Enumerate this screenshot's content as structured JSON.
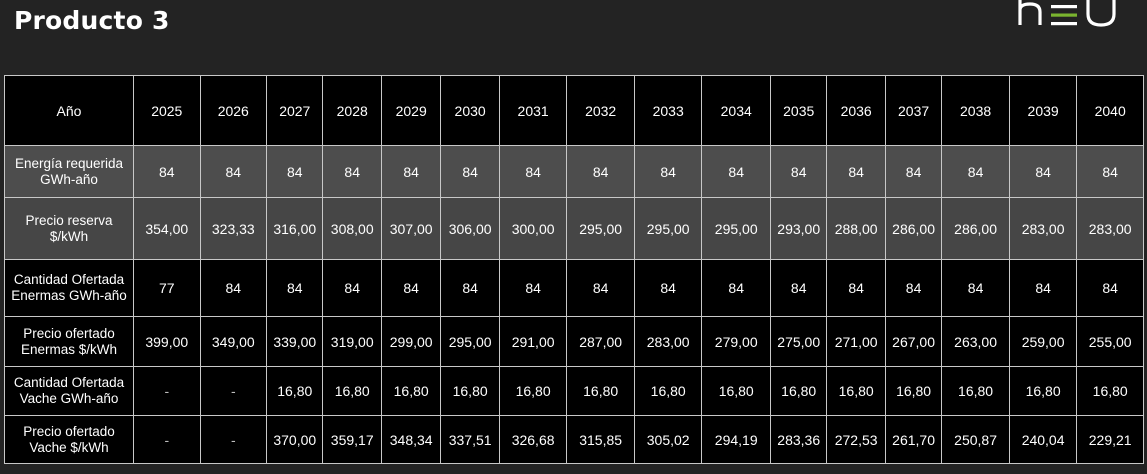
{
  "header": {
    "title": "Producto 3",
    "logo_text": "neu",
    "logo_accent": "#7ab42f"
  },
  "table": {
    "corner_label": "Año",
    "years": [
      "2025",
      "2026",
      "2027",
      "2028",
      "2029",
      "2030",
      "2031",
      "2032",
      "2033",
      "2034",
      "2035",
      "2036",
      "2037",
      "2038",
      "2039",
      "2040"
    ],
    "rows": [
      {
        "label_line1": "Energía requerida",
        "label_line2": "GWh-año",
        "values": [
          "84",
          "84",
          "84",
          "84",
          "84",
          "84",
          "84",
          "84",
          "84",
          "84",
          "84",
          "84",
          "84",
          "84",
          "84",
          "84"
        ]
      },
      {
        "label_line1": "Precio reserva",
        "label_line2": "$/kWh",
        "values": [
          "354,00",
          "323,33",
          "316,00",
          "308,00",
          "307,00",
          "306,00",
          "300,00",
          "295,00",
          "295,00",
          "295,00",
          "293,00",
          "288,00",
          "286,00",
          "286,00",
          "283,00",
          "283,00"
        ]
      },
      {
        "label_line1": "Cantidad Ofertada",
        "label_line2": "Enermas GWh-año",
        "values": [
          "77",
          "84",
          "84",
          "84",
          "84",
          "84",
          "84",
          "84",
          "84",
          "84",
          "84",
          "84",
          "84",
          "84",
          "84",
          "84"
        ]
      },
      {
        "label_line1": "Precio ofertado",
        "label_line2": "Enermas $/kWh",
        "values": [
          "399,00",
          "349,00",
          "339,00",
          "319,00",
          "299,00",
          "295,00",
          "291,00",
          "287,00",
          "283,00",
          "279,00",
          "275,00",
          "271,00",
          "267,00",
          "263,00",
          "259,00",
          "255,00"
        ]
      },
      {
        "label_line1": "Cantidad Ofertada",
        "label_line2": "Vache  GWh-año",
        "values": [
          "-",
          "-",
          "16,80",
          "16,80",
          "16,80",
          "16,80",
          "16,80",
          "16,80",
          "16,80",
          "16,80",
          "16,80",
          "16,80",
          "16,80",
          "16,80",
          "16,80",
          "16,80"
        ]
      },
      {
        "label_line1": "Precio ofertado",
        "label_line2": "Vache $/kWh",
        "values": [
          "-",
          "-",
          "370,00",
          "359,17",
          "348,34",
          "337,51",
          "326,68",
          "315,85",
          "305,02",
          "294,19",
          "283,36",
          "272,53",
          "261,70",
          "250,87",
          "240,04",
          "229,21"
        ]
      }
    ]
  }
}
